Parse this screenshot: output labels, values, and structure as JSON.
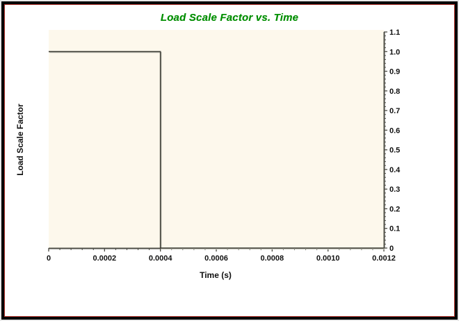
{
  "window": {
    "title": "Load Scale Factor vs. Time"
  },
  "chart_data": {
    "type": "line",
    "subtype": "step",
    "title": "Load Scale Factor vs. Time",
    "xlabel": "Time (s)",
    "ylabel": "Load Scale Factor",
    "xlim": [
      0,
      0.0012
    ],
    "ylim": [
      0,
      1.1
    ],
    "x_tick_values": [
      0,
      0.0002,
      0.0004,
      0.0006,
      0.0008,
      0.001,
      0.0012
    ],
    "x_tick_labels": [
      "0",
      "0.0002",
      "0.0004",
      "0.0006",
      "0.0008",
      "0.0010",
      "0.0012"
    ],
    "y_tick_values": [
      0,
      0.1,
      0.2,
      0.3,
      0.4,
      0.5,
      0.6,
      0.7,
      0.8,
      0.9,
      1.0,
      1.1
    ],
    "y_tick_labels": [
      "0",
      "0.1",
      "0.2",
      "0.3",
      "0.4",
      "0.5",
      "0.6",
      "0.7",
      "0.8",
      "0.9",
      "1.0",
      "1.1"
    ],
    "x_minor_ticks_per_major": 4,
    "y_minor_ticks_per_major": 4,
    "y_axis_side": "right",
    "grid": false,
    "legend_position": "none",
    "series": [
      {
        "name": "Load Scale Factor",
        "points": [
          [
            0,
            1.0
          ],
          [
            0.0004,
            1.0
          ],
          [
            0.0004,
            0
          ],
          [
            0.0012,
            0
          ]
        ]
      }
    ],
    "colors": {
      "title": "#009100",
      "plot_background": "#fdf8ec",
      "line": "#3b3b33",
      "line_shadow": "#c9c9bd",
      "axis": "#4b4b43",
      "tick_label": "#101010",
      "frame_outer": "#000000",
      "frame_inner_line": "#b03028",
      "page_background": "#ffffff"
    }
  }
}
